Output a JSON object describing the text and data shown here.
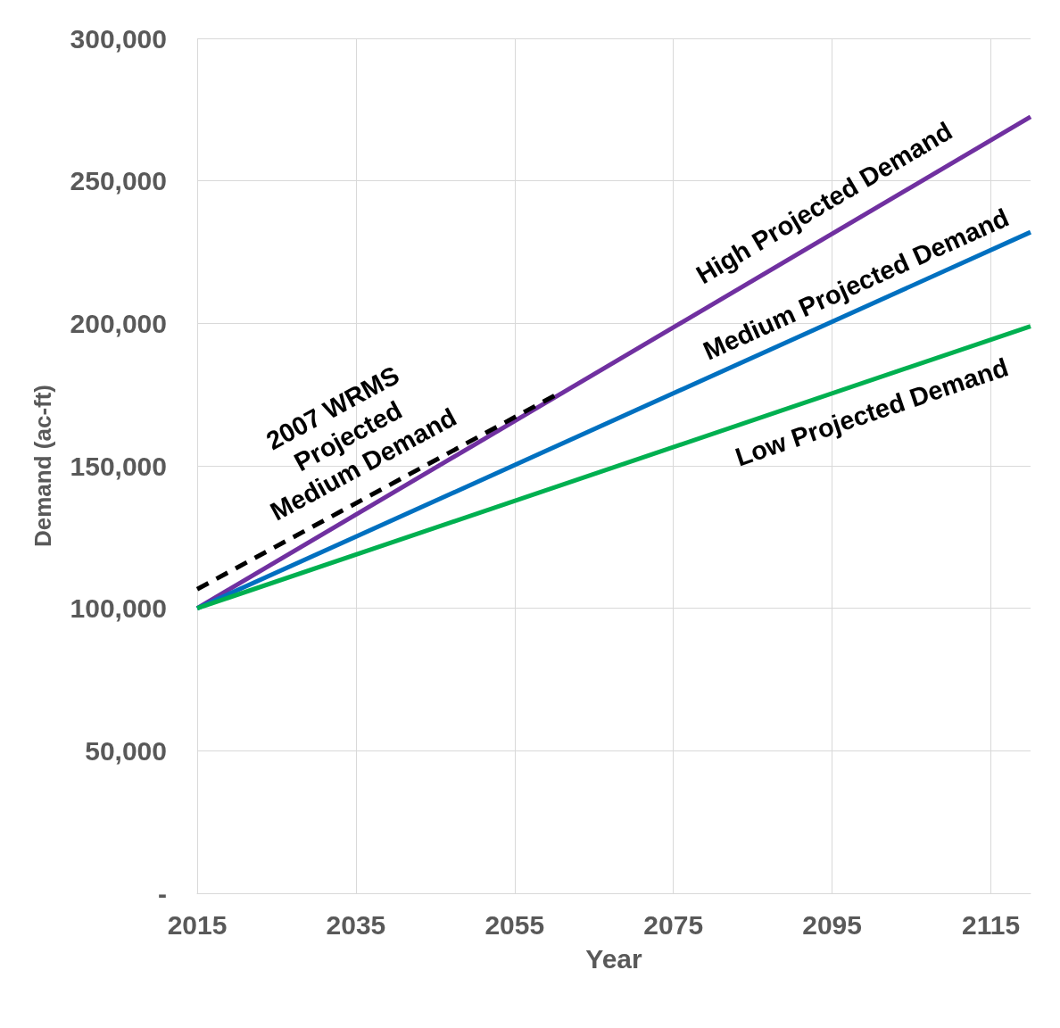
{
  "chart_data": {
    "type": "line",
    "xlabel": "Year",
    "ylabel": "Demand (ac-ft)",
    "x": [
      2015,
      2120
    ],
    "series": [
      {
        "name": "High Projected Demand",
        "color": "#7030a0",
        "values": [
          100000,
          272500
        ]
      },
      {
        "name": "Medium Projected Demand",
        "color": "#0070c0",
        "values": [
          100000,
          232000
        ]
      },
      {
        "name": "Low Projected Demand",
        "color": "#00b050",
        "values": [
          100000,
          199000
        ]
      },
      {
        "name": "2007 WRMS\nProjected\nMedium Demand",
        "color": "#000000",
        "line_style": "dashed",
        "x": [
          2015,
          2060
        ],
        "values": [
          106700,
          174600
        ]
      }
    ],
    "xlim": [
      2015,
      2120
    ],
    "xticks": [
      2015,
      2035,
      2055,
      2075,
      2095,
      2115
    ],
    "ylim": [
      0,
      300000
    ],
    "yticks": [
      {
        "value": 0,
        "label": "-"
      },
      {
        "value": 50000,
        "label": "50,000"
      },
      {
        "value": 100000,
        "label": "100,000"
      },
      {
        "value": 150000,
        "label": "150,000"
      },
      {
        "value": 200000,
        "label": "200,000"
      },
      {
        "value": 250000,
        "label": "250,000"
      },
      {
        "value": 300000,
        "label": "300,000"
      }
    ],
    "grid": true,
    "legend": false,
    "marker": "none",
    "line_style": "solid"
  }
}
